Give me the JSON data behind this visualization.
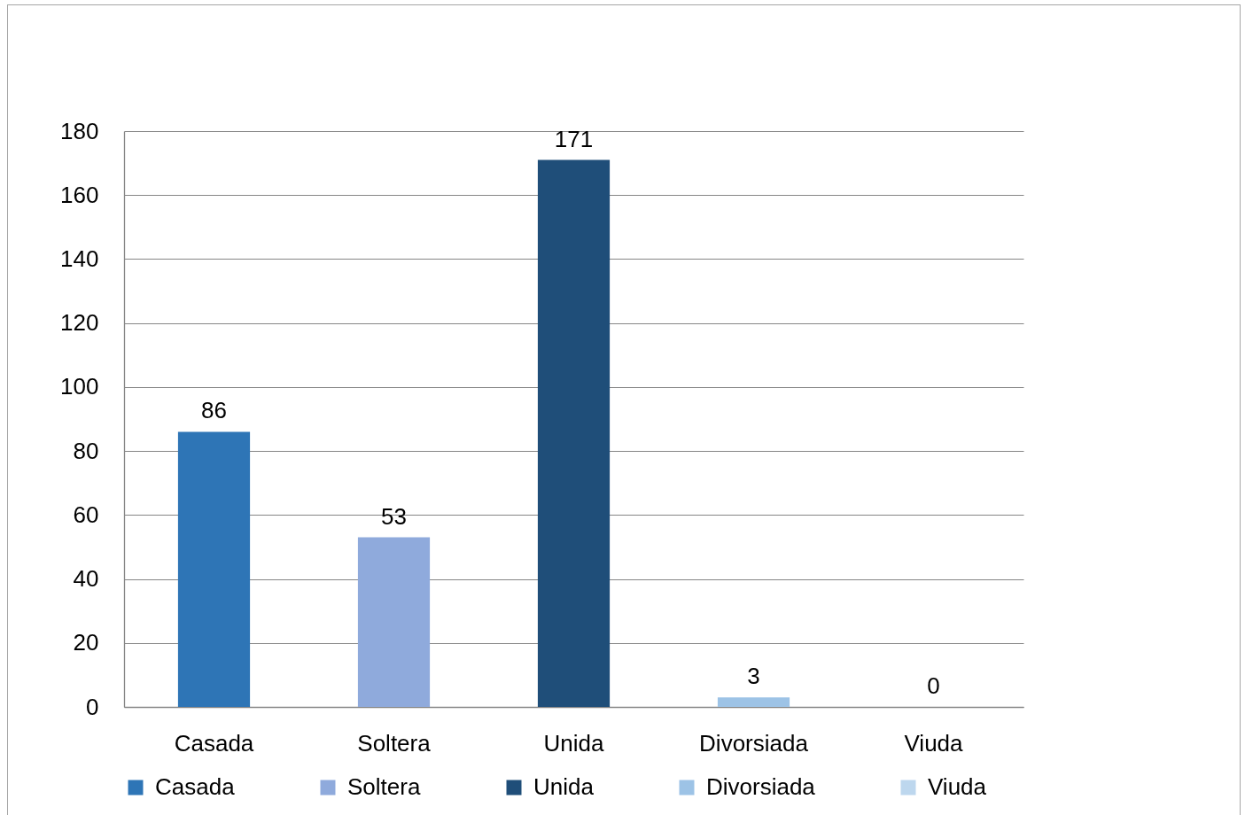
{
  "chart_data": {
    "type": "bar",
    "categories": [
      "Casada",
      "Soltera",
      "Unida",
      "Divorsiada",
      "Viuda"
    ],
    "series": [
      {
        "name": "Casada",
        "color": "#2e75b6",
        "values": [
          86,
          null,
          null,
          null,
          null
        ]
      },
      {
        "name": "Soltera",
        "color": "#8faadc",
        "values": [
          null,
          53,
          null,
          null,
          null
        ]
      },
      {
        "name": "Unida",
        "color": "#1f4e79",
        "values": [
          null,
          null,
          171,
          null,
          null
        ]
      },
      {
        "name": "Divorsiada",
        "color": "#9dc3e6",
        "values": [
          null,
          null,
          null,
          3,
          null
        ]
      },
      {
        "name": "Viuda",
        "color": "#bdd7ee",
        "values": [
          null,
          null,
          null,
          null,
          0
        ]
      }
    ],
    "ylim": [
      0,
      180
    ],
    "yticks": [
      0,
      20,
      40,
      60,
      80,
      100,
      120,
      140,
      160,
      180
    ],
    "grid": "y",
    "legend": "bottom",
    "data_labels": true
  }
}
